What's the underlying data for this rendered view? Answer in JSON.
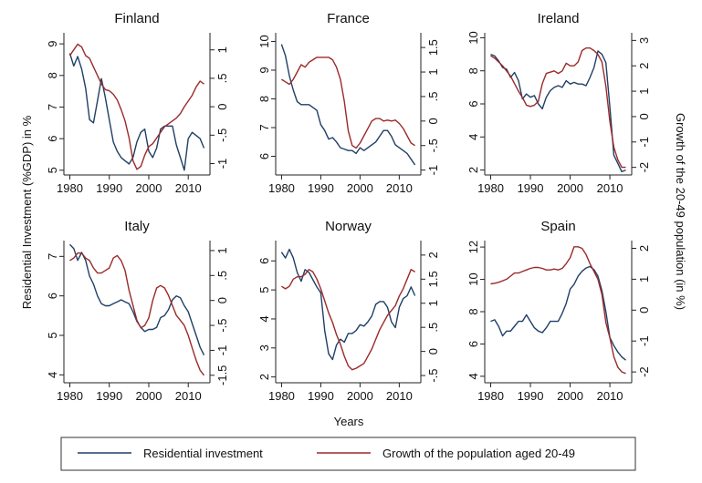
{
  "chart_data": {
    "type": "line",
    "xlabel": "Years",
    "ylabel_left": "Residential Investment (%GDP) in %",
    "ylabel_right": "Growth of the 20-49 population (in %)",
    "xticks": [
      1980,
      1990,
      2000,
      2010
    ],
    "colors": {
      "investment": "#1f3f66",
      "population": "#9b2a2a"
    },
    "legend": {
      "position": "bottom",
      "investment": "Residential investment",
      "population": "Growth of the population aged 20-49"
    },
    "panels": [
      {
        "name": "Finland",
        "left_axis": {
          "ylim": [
            4.85,
            9.35
          ],
          "ticks": [
            "5",
            "6",
            "7",
            "8",
            "9"
          ]
        },
        "right_axis": {
          "ylim": [
            -1.2,
            1.3
          ],
          "ticks": [
            "-1",
            "-.5",
            "0",
            ".5",
            "1"
          ]
        },
        "x": [
          1980,
          1981,
          1982,
          1983,
          1984,
          1985,
          1986,
          1987,
          1988,
          1989,
          1990,
          1991,
          1992,
          1993,
          1994,
          1995,
          1996,
          1997,
          1998,
          1999,
          2000,
          2001,
          2002,
          2003,
          2004,
          2005,
          2006,
          2007,
          2008,
          2009,
          2010,
          2011,
          2012,
          2013,
          2014
        ],
        "series": [
          {
            "key": "investment",
            "values": [
              8.7,
              8.3,
              8.6,
              8.2,
              7.6,
              6.6,
              6.5,
              7.2,
              7.9,
              7.3,
              6.6,
              5.9,
              5.6,
              5.4,
              5.3,
              5.2,
              5.4,
              5.9,
              6.2,
              6.3,
              5.6,
              5.4,
              5.7,
              6.3,
              6.4,
              6.4,
              6.4,
              5.8,
              5.4,
              5.0,
              6.0,
              6.2,
              6.1,
              6.0,
              5.7
            ]
          },
          {
            "key": "population",
            "values": [
              0.9,
              1.0,
              1.1,
              1.05,
              0.9,
              0.85,
              0.7,
              0.55,
              0.4,
              0.3,
              0.28,
              0.22,
              0.12,
              -0.05,
              -0.25,
              -0.55,
              -0.95,
              -1.1,
              -1.05,
              -0.85,
              -0.7,
              -0.65,
              -0.55,
              -0.45,
              -0.35,
              -0.3,
              -0.25,
              -0.2,
              -0.12,
              0.0,
              0.1,
              0.2,
              0.35,
              0.45,
              0.4
            ]
          }
        ]
      },
      {
        "name": "France",
        "left_axis": {
          "ylim": [
            5.35,
            10.3
          ],
          "ticks": [
            "6",
            "7",
            "8",
            "9",
            "10"
          ]
        },
        "right_axis": {
          "ylim": [
            -1.1,
            1.8
          ],
          "ticks": [
            "-1",
            "-.5",
            "0",
            ".5",
            "1",
            "1.5"
          ]
        },
        "x": [
          1980,
          1981,
          1982,
          1983,
          1984,
          1985,
          1986,
          1987,
          1988,
          1989,
          1990,
          1991,
          1992,
          1993,
          1994,
          1995,
          1996,
          1997,
          1998,
          1999,
          2000,
          2001,
          2002,
          2003,
          2004,
          2005,
          2006,
          2007,
          2008,
          2009,
          2010,
          2011,
          2012,
          2013,
          2014
        ],
        "series": [
          {
            "key": "investment",
            "values": [
              9.9,
              9.5,
              8.8,
              8.3,
              7.9,
              7.8,
              7.8,
              7.8,
              7.7,
              7.6,
              7.1,
              6.9,
              6.6,
              6.65,
              6.5,
              6.3,
              6.25,
              6.2,
              6.2,
              6.1,
              6.3,
              6.2,
              6.3,
              6.4,
              6.5,
              6.7,
              6.9,
              6.9,
              6.7,
              6.4,
              6.3,
              6.2,
              6.1,
              5.9,
              5.7
            ]
          },
          {
            "key": "population",
            "values": [
              0.85,
              0.8,
              0.75,
              0.85,
              1.0,
              1.15,
              1.1,
              1.2,
              1.25,
              1.3,
              1.3,
              1.3,
              1.3,
              1.25,
              1.1,
              0.85,
              0.4,
              -0.2,
              -0.5,
              -0.55,
              -0.45,
              -0.3,
              -0.15,
              0.0,
              0.05,
              0.05,
              0.0,
              0.02,
              0.0,
              0.02,
              -0.05,
              -0.15,
              -0.3,
              -0.45,
              -0.5
            ]
          }
        ]
      },
      {
        "name": "Ireland",
        "left_axis": {
          "ylim": [
            1.7,
            10.3
          ],
          "ticks": [
            "2",
            "4",
            "6",
            "8",
            "10"
          ]
        },
        "right_axis": {
          "ylim": [
            -2.3,
            3.3
          ],
          "ticks": [
            "-2",
            "-1",
            "0",
            "1",
            "2",
            "3"
          ]
        },
        "x": [
          1980,
          1981,
          1982,
          1983,
          1984,
          1985,
          1986,
          1987,
          1988,
          1989,
          1990,
          1991,
          1992,
          1993,
          1994,
          1995,
          1996,
          1997,
          1998,
          1999,
          2000,
          2001,
          2002,
          2003,
          2004,
          2005,
          2006,
          2007,
          2008,
          2009,
          2010,
          2011,
          2012,
          2013,
          2014
        ],
        "series": [
          {
            "key": "investment",
            "values": [
              9.0,
              8.9,
              8.6,
              8.2,
              8.1,
              7.6,
              7.9,
              7.4,
              6.3,
              6.6,
              6.4,
              6.5,
              6.0,
              5.7,
              6.4,
              6.8,
              7.0,
              7.1,
              7.0,
              7.4,
              7.2,
              7.3,
              7.2,
              7.2,
              7.1,
              7.6,
              8.2,
              9.2,
              9.0,
              8.5,
              5.8,
              2.9,
              2.4,
              1.9,
              2.0
            ]
          },
          {
            "key": "population",
            "values": [
              2.4,
              2.3,
              2.15,
              2.0,
              1.8,
              1.6,
              1.3,
              1.0,
              0.75,
              0.45,
              0.4,
              0.45,
              0.6,
              1.3,
              1.7,
              1.75,
              1.8,
              1.7,
              1.8,
              2.1,
              2.0,
              2.0,
              2.15,
              2.6,
              2.7,
              2.7,
              2.6,
              2.45,
              2.15,
              1.2,
              -0.2,
              -1.2,
              -1.7,
              -2.0,
              -2.0
            ]
          }
        ]
      },
      {
        "name": "Italy",
        "left_axis": {
          "ylim": [
            3.8,
            7.4
          ],
          "ticks": [
            "4",
            "5",
            "6",
            "7"
          ]
        },
        "right_axis": {
          "ylim": [
            -1.65,
            1.2
          ],
          "ticks": [
            "-1.5",
            "-1",
            "-.5",
            "0",
            ".5",
            "1"
          ]
        },
        "x": [
          1980,
          1981,
          1982,
          1983,
          1984,
          1985,
          1986,
          1987,
          1988,
          1989,
          1990,
          1991,
          1992,
          1993,
          1994,
          1995,
          1996,
          1997,
          1998,
          1999,
          2000,
          2001,
          2002,
          2003,
          2004,
          2005,
          2006,
          2007,
          2008,
          2009,
          2010,
          2011,
          2012,
          2013,
          2014
        ],
        "series": [
          {
            "key": "investment",
            "values": [
              7.3,
              7.2,
              6.9,
              7.1,
              6.9,
              6.5,
              6.3,
              6.0,
              5.8,
              5.75,
              5.75,
              5.8,
              5.85,
              5.9,
              5.85,
              5.8,
              5.6,
              5.35,
              5.2,
              5.1,
              5.15,
              5.15,
              5.2,
              5.45,
              5.5,
              5.65,
              5.9,
              6.0,
              5.95,
              5.75,
              5.6,
              5.3,
              5.0,
              4.7,
              4.5
            ]
          },
          {
            "key": "population",
            "values": [
              0.8,
              0.85,
              0.95,
              0.95,
              0.85,
              0.8,
              0.65,
              0.55,
              0.55,
              0.6,
              0.65,
              0.85,
              0.9,
              0.8,
              0.6,
              0.2,
              -0.1,
              -0.4,
              -0.55,
              -0.5,
              -0.35,
              0.0,
              0.25,
              0.3,
              0.25,
              0.1,
              -0.1,
              -0.3,
              -0.4,
              -0.5,
              -0.7,
              -0.95,
              -1.2,
              -1.4,
              -1.5
            ]
          }
        ]
      },
      {
        "name": "Norway",
        "left_axis": {
          "ylim": [
            1.8,
            6.7
          ],
          "ticks": [
            "2",
            "3",
            "4",
            "5",
            "6"
          ]
        },
        "right_axis": {
          "ylim": [
            -0.65,
            2.3
          ],
          "ticks": [
            "-.5",
            "0",
            ".5",
            "1",
            "1.5",
            "2"
          ]
        },
        "x": [
          1980,
          1981,
          1982,
          1983,
          1984,
          1985,
          1986,
          1987,
          1988,
          1989,
          1990,
          1991,
          1992,
          1993,
          1994,
          1995,
          1996,
          1997,
          1998,
          1999,
          2000,
          2001,
          2002,
          2003,
          2004,
          2005,
          2006,
          2007,
          2008,
          2009,
          2010,
          2011,
          2012,
          2013,
          2014
        ],
        "series": [
          {
            "key": "investment",
            "values": [
              6.3,
              6.1,
              6.4,
              6.1,
              5.6,
              5.3,
              5.7,
              5.6,
              5.35,
              5.1,
              4.9,
              3.6,
              2.8,
              2.6,
              3.1,
              3.3,
              3.2,
              3.5,
              3.5,
              3.6,
              3.8,
              3.75,
              3.9,
              4.1,
              4.5,
              4.6,
              4.6,
              4.4,
              3.9,
              3.7,
              4.4,
              4.7,
              4.8,
              5.1,
              4.8
            ]
          },
          {
            "key": "population",
            "values": [
              1.35,
              1.3,
              1.35,
              1.5,
              1.55,
              1.55,
              1.6,
              1.7,
              1.65,
              1.5,
              1.3,
              1.05,
              0.8,
              0.6,
              0.35,
              0.15,
              -0.1,
              -0.3,
              -0.38,
              -0.35,
              -0.3,
              -0.25,
              -0.1,
              0.05,
              0.25,
              0.45,
              0.6,
              0.75,
              0.85,
              0.95,
              1.15,
              1.3,
              1.5,
              1.7,
              1.65
            ]
          }
        ]
      },
      {
        "name": "Spain",
        "left_axis": {
          "ylim": [
            3.6,
            12.4
          ],
          "ticks": [
            "4",
            "6",
            "8",
            "10",
            "12"
          ]
        },
        "right_axis": {
          "ylim": [
            -2.35,
            2.25
          ],
          "ticks": [
            "-2",
            "-1",
            "0",
            "1",
            "2"
          ]
        },
        "x": [
          1980,
          1981,
          1982,
          1983,
          1984,
          1985,
          1986,
          1987,
          1988,
          1989,
          1990,
          1991,
          1992,
          1993,
          1994,
          1995,
          1996,
          1997,
          1998,
          1999,
          2000,
          2001,
          2002,
          2003,
          2004,
          2005,
          2006,
          2007,
          2008,
          2009,
          2010,
          2011,
          2012,
          2013,
          2014
        ],
        "series": [
          {
            "key": "investment",
            "values": [
              7.4,
              7.5,
              7.1,
              6.5,
              6.8,
              6.8,
              7.1,
              7.4,
              7.4,
              7.8,
              7.4,
              7.0,
              6.8,
              6.7,
              7.0,
              7.4,
              7.4,
              7.4,
              7.9,
              8.5,
              9.4,
              9.7,
              10.2,
              10.5,
              10.7,
              10.8,
              10.6,
              10.2,
              9.3,
              8.0,
              6.4,
              5.9,
              5.5,
              5.2,
              5.0
            ]
          },
          {
            "key": "population",
            "values": [
              0.85,
              0.87,
              0.9,
              0.95,
              1.0,
              1.1,
              1.2,
              1.2,
              1.25,
              1.3,
              1.35,
              1.38,
              1.38,
              1.35,
              1.3,
              1.3,
              1.33,
              1.3,
              1.35,
              1.5,
              1.7,
              2.05,
              2.05,
              2.0,
              1.8,
              1.5,
              1.25,
              1.0,
              0.5,
              -0.4,
              -0.9,
              -1.5,
              -1.85,
              -2.0,
              -2.05
            ]
          }
        ]
      }
    ]
  }
}
